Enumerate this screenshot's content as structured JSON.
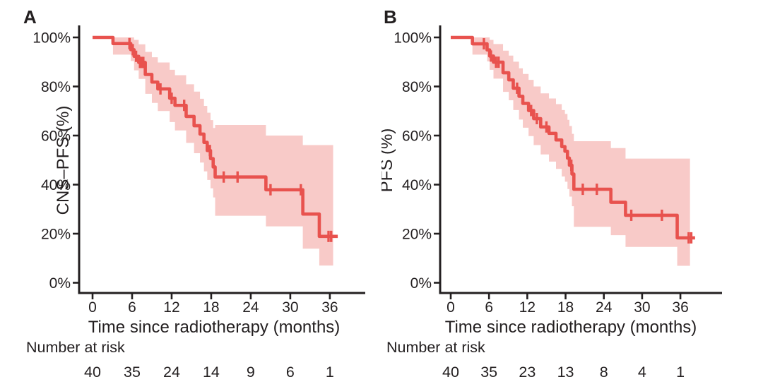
{
  "figure": {
    "colors": {
      "curve": "#e8524e",
      "ci_band": "#f8cac8",
      "axis": "#231f20",
      "text": "#231f20",
      "background": "#ffffff"
    }
  },
  "chart_data": [
    {
      "type": "line",
      "subtype": "kaplan-meier-step-curve-with-confidence-band",
      "panel_label": "A",
      "xlabel": "Time since radiotherapy (months)",
      "ylabel": "CNS–PFS (%)",
      "xlim": [
        0,
        42
      ],
      "ylim": [
        0,
        100
      ],
      "grid": false,
      "legend": null,
      "xticks": [
        0,
        6,
        12,
        18,
        24,
        30,
        36
      ],
      "ytick_values": [
        0,
        20,
        40,
        60,
        80,
        100
      ],
      "ytick_labels": [
        "0%",
        "20%",
        "40%",
        "60%",
        "80%",
        "100%"
      ],
      "series": [
        {
          "name": "CNS-PFS",
          "end_t": 37.2,
          "band_end_t": 36.5,
          "steps": [
            {
              "t": 0,
              "s": 100
            },
            {
              "t": 3.1,
              "s": 97.5,
              "lo": 93.0,
              "hi": 100
            },
            {
              "t": 5.8,
              "s": 95.0,
              "lo": 90.4,
              "hi": 100
            },
            {
              "t": 6.3,
              "s": 92.3,
              "lo": 86.6,
              "hi": 99.0
            },
            {
              "t": 7.0,
              "s": 89.8,
              "lo": 83.1,
              "hi": 97.2
            },
            {
              "t": 8.0,
              "s": 84.9,
              "lo": 77.0,
              "hi": 94.1
            },
            {
              "t": 9.0,
              "s": 81.8,
              "lo": 73.3,
              "hi": 91.9
            },
            {
              "t": 9.9,
              "s": 79.0,
              "lo": 70.0,
              "hi": 89.8
            },
            {
              "t": 11.7,
              "s": 75.2,
              "lo": 65.5,
              "hi": 86.8
            },
            {
              "t": 12.5,
              "s": 72.3,
              "lo": 62.1,
              "hi": 84.6
            },
            {
              "t": 14.2,
              "s": 67.8,
              "lo": 57.0,
              "hi": 80.9
            },
            {
              "t": 15.4,
              "s": 64.0,
              "lo": 52.8,
              "hi": 77.9
            },
            {
              "t": 16.3,
              "s": 60.6,
              "lo": 49.0,
              "hi": 75.0
            },
            {
              "t": 16.9,
              "s": 57.2,
              "lo": 45.4,
              "hi": 72.1
            },
            {
              "t": 17.4,
              "s": 53.9,
              "lo": 41.9,
              "hi": 69.3
            },
            {
              "t": 17.9,
              "s": 50.6,
              "lo": 38.5,
              "hi": 66.3
            },
            {
              "t": 18.3,
              "s": 47.2,
              "lo": 34.8,
              "hi": 63.1
            },
            {
              "t": 18.6,
              "s": 43.1,
              "lo": 27.3,
              "hi": 64.3
            },
            {
              "t": 26.3,
              "s": 37.9,
              "lo": 23.0,
              "hi": 60.0
            },
            {
              "t": 31.9,
              "s": 28.0,
              "lo": 13.9,
              "hi": 56.1
            },
            {
              "t": 34.4,
              "s": 18.9,
              "lo": 7.0,
              "hi": 56.1
            }
          ],
          "censors": [
            {
              "t": 5.6,
              "s": 97.5
            },
            {
              "t": 6.1,
              "s": 95.0
            },
            {
              "t": 6.6,
              "s": 92.3
            },
            {
              "t": 7.2,
              "s": 89.8
            },
            {
              "t": 7.45,
              "s": 89.8
            },
            {
              "t": 7.7,
              "s": 89.8
            },
            {
              "t": 10.3,
              "s": 79.0
            },
            {
              "t": 12.0,
              "s": 75.2
            },
            {
              "t": 13.9,
              "s": 72.3
            },
            {
              "t": 17.8,
              "s": 53.9
            },
            {
              "t": 19.9,
              "s": 43.1
            },
            {
              "t": 22.0,
              "s": 43.1
            },
            {
              "t": 27.0,
              "s": 37.9
            },
            {
              "t": 31.6,
              "s": 37.9
            },
            {
              "t": 35.8,
              "s": 18.9
            },
            {
              "t": 36.2,
              "s": 18.9
            }
          ]
        }
      ],
      "risk_table": {
        "label": "Number at risk",
        "times": [
          0,
          6,
          12,
          18,
          24,
          30,
          36
        ],
        "counts": [
          40,
          35,
          24,
          14,
          9,
          6,
          1
        ]
      }
    },
    {
      "type": "line",
      "subtype": "kaplan-meier-step-curve-with-confidence-band",
      "panel_label": "B",
      "xlabel": "Time since radiotherapy (months)",
      "ylabel": "PFS (%)",
      "xlim": [
        0,
        42
      ],
      "ylim": [
        0,
        100
      ],
      "grid": false,
      "legend": null,
      "xticks": [
        0,
        6,
        12,
        18,
        24,
        30,
        36
      ],
      "ytick_values": [
        0,
        20,
        40,
        60,
        80,
        100
      ],
      "ytick_labels": [
        "0%",
        "20%",
        "40%",
        "60%",
        "80%",
        "100%"
      ],
      "series": [
        {
          "name": "PFS",
          "end_t": 38.3,
          "band_end_t": 37.5,
          "steps": [
            {
              "t": 0,
              "s": 100
            },
            {
              "t": 3.4,
              "s": 97.4,
              "lo": 93.0,
              "hi": 100
            },
            {
              "t": 5.7,
              "s": 94.9,
              "lo": 90.2,
              "hi": 100
            },
            {
              "t": 6.1,
              "s": 92.4,
              "lo": 86.8,
              "hi": 99.0
            },
            {
              "t": 6.7,
              "s": 89.9,
              "lo": 83.2,
              "hi": 97.3
            },
            {
              "t": 8.2,
              "s": 85.6,
              "lo": 77.8,
              "hi": 94.6
            },
            {
              "t": 9.1,
              "s": 82.7,
              "lo": 74.4,
              "hi": 92.6
            },
            {
              "t": 9.8,
              "s": 79.3,
              "lo": 70.4,
              "hi": 90.1
            },
            {
              "t": 10.7,
              "s": 76.0,
              "lo": 66.5,
              "hi": 87.4
            },
            {
              "t": 11.3,
              "s": 73.1,
              "lo": 63.2,
              "hi": 85.1
            },
            {
              "t": 12.2,
              "s": 70.2,
              "lo": 59.8,
              "hi": 82.7
            },
            {
              "t": 13.0,
              "s": 66.9,
              "lo": 56.1,
              "hi": 80.0
            },
            {
              "t": 14.1,
              "s": 63.5,
              "lo": 52.3,
              "hi": 77.2
            },
            {
              "t": 15.4,
              "s": 60.9,
              "lo": 49.4,
              "hi": 75.1
            },
            {
              "t": 16.5,
              "s": 58.2,
              "lo": 46.4,
              "hi": 72.8
            },
            {
              "t": 17.4,
              "s": 55.5,
              "lo": 43.3,
              "hi": 70.4
            },
            {
              "t": 17.9,
              "s": 53.6,
              "lo": 41.2,
              "hi": 68.8
            },
            {
              "t": 18.3,
              "s": 50.8,
              "lo": 38.2,
              "hi": 66.4
            },
            {
              "t": 18.6,
              "s": 47.9,
              "lo": 35.1,
              "hi": 63.9
            },
            {
              "t": 19.0,
              "s": 44.3,
              "lo": 31.2,
              "hi": 60.7
            },
            {
              "t": 19.3,
              "s": 38.1,
              "lo": 22.8,
              "hi": 57.7
            },
            {
              "t": 25.1,
              "s": 32.8,
              "lo": 19.4,
              "hi": 54.9
            },
            {
              "t": 27.4,
              "s": 27.5,
              "lo": 14.6,
              "hi": 50.6
            },
            {
              "t": 35.5,
              "s": 18.3,
              "lo": 6.9,
              "hi": 50.6
            }
          ],
          "censors": [
            {
              "t": 5.2,
              "s": 97.4
            },
            {
              "t": 6.3,
              "s": 92.4
            },
            {
              "t": 7.1,
              "s": 89.9
            },
            {
              "t": 7.5,
              "s": 89.9
            },
            {
              "t": 10.4,
              "s": 79.3
            },
            {
              "t": 12.6,
              "s": 70.2
            },
            {
              "t": 13.5,
              "s": 66.9
            },
            {
              "t": 15.0,
              "s": 63.5
            },
            {
              "t": 18.9,
              "s": 47.9
            },
            {
              "t": 20.7,
              "s": 38.1
            },
            {
              "t": 22.9,
              "s": 38.1
            },
            {
              "t": 28.3,
              "s": 27.5
            },
            {
              "t": 33.1,
              "s": 27.5
            },
            {
              "t": 37.3,
              "s": 18.3
            },
            {
              "t": 37.7,
              "s": 18.3
            }
          ]
        }
      ],
      "risk_table": {
        "label": "Number at risk",
        "times": [
          0,
          6,
          12,
          18,
          24,
          30,
          36
        ],
        "counts": [
          40,
          35,
          23,
          13,
          8,
          4,
          1
        ]
      }
    }
  ]
}
